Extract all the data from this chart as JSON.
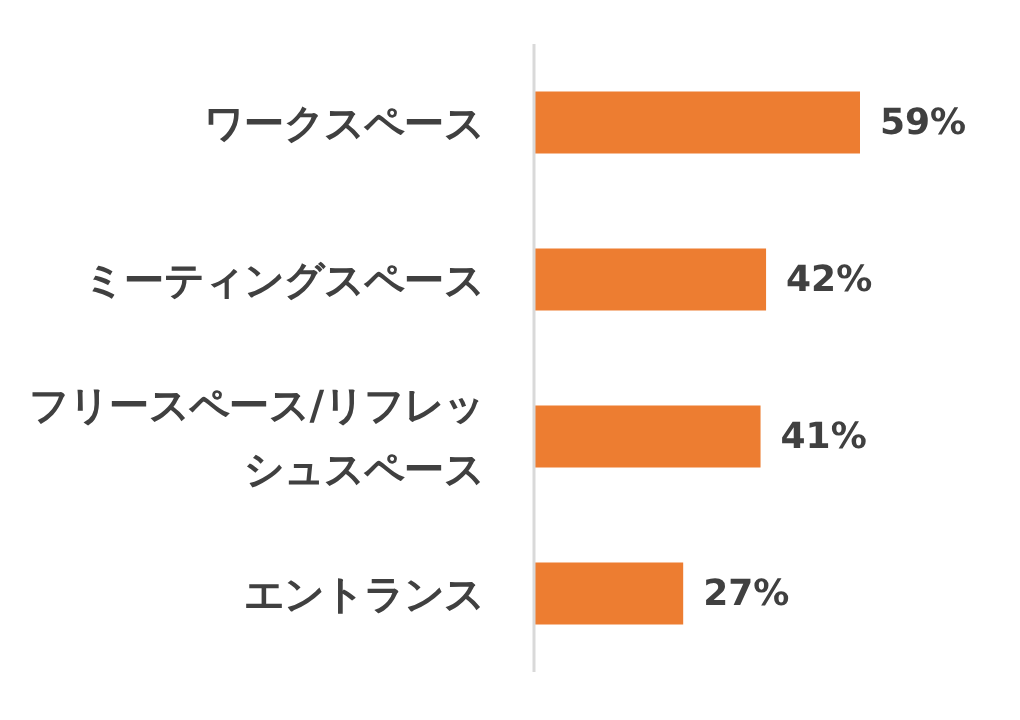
{
  "chart_data": {
    "type": "bar",
    "orientation": "horizontal",
    "categories": [
      "ワークスペース",
      "ミーティングスペース",
      "フリースペース/リフレッシュスペース",
      "エントランス"
    ],
    "values": [
      59,
      42,
      41,
      27
    ],
    "value_labels": [
      "59%",
      "42%",
      "41%",
      "27%"
    ],
    "color": "#ed7d31"
  }
}
